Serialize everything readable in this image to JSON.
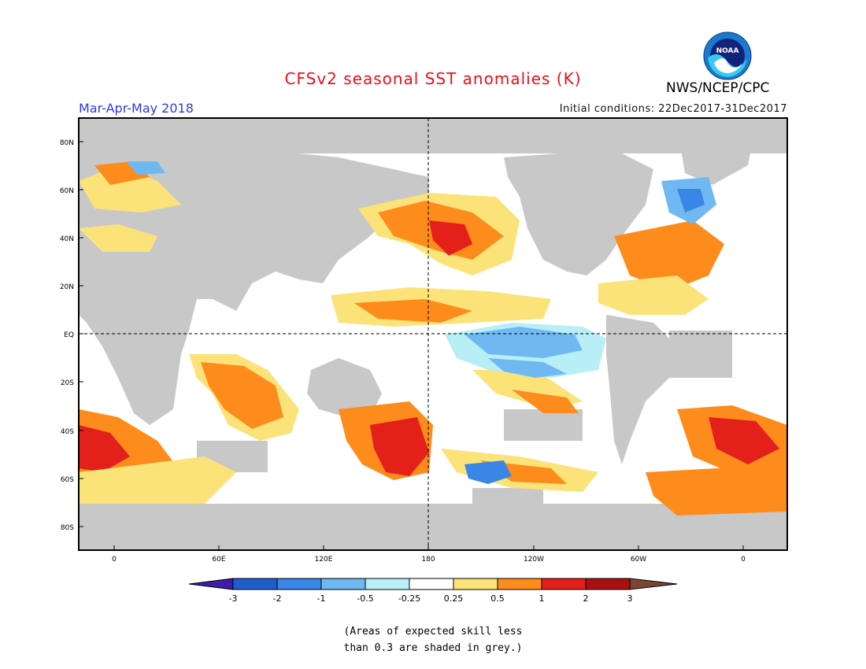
{
  "header": {
    "title": "CFSv2 seasonal SST anomalies (K)",
    "period": "Mar-Apr-May 2018",
    "initial_conditions": "Initial conditions: 22Dec2017-31Dec2017",
    "agency": "NWS/NCEP/CPC",
    "logo_text": "NOAA"
  },
  "map": {
    "lat_labels": [
      "80N",
      "60N",
      "40N",
      "20N",
      "EQ",
      "20S",
      "40S",
      "60S",
      "80S"
    ],
    "lon_labels": [
      "0",
      "60E",
      "120E",
      "180",
      "120W",
      "60W",
      "0"
    ],
    "land_color": "#c8c8c8",
    "ocean_color": "#ffffff"
  },
  "colorbar": {
    "labels": [
      "-3",
      "-2",
      "-1",
      "-0.5",
      "-0.25",
      "0.25",
      "0.5",
      "1",
      "2",
      "3"
    ],
    "colors": [
      "#3c1ca8",
      "#1f5ccc",
      "#3a86e6",
      "#70b8f2",
      "#b8eef5",
      "#ffffff",
      "#fbe37a",
      "#fd8c1c",
      "#e3201a",
      "#ab0f10",
      "#7a4633"
    ]
  },
  "note": {
    "line1": "(Areas of expected skill less",
    "line2": "than 0.3 are shaded in grey.)"
  }
}
